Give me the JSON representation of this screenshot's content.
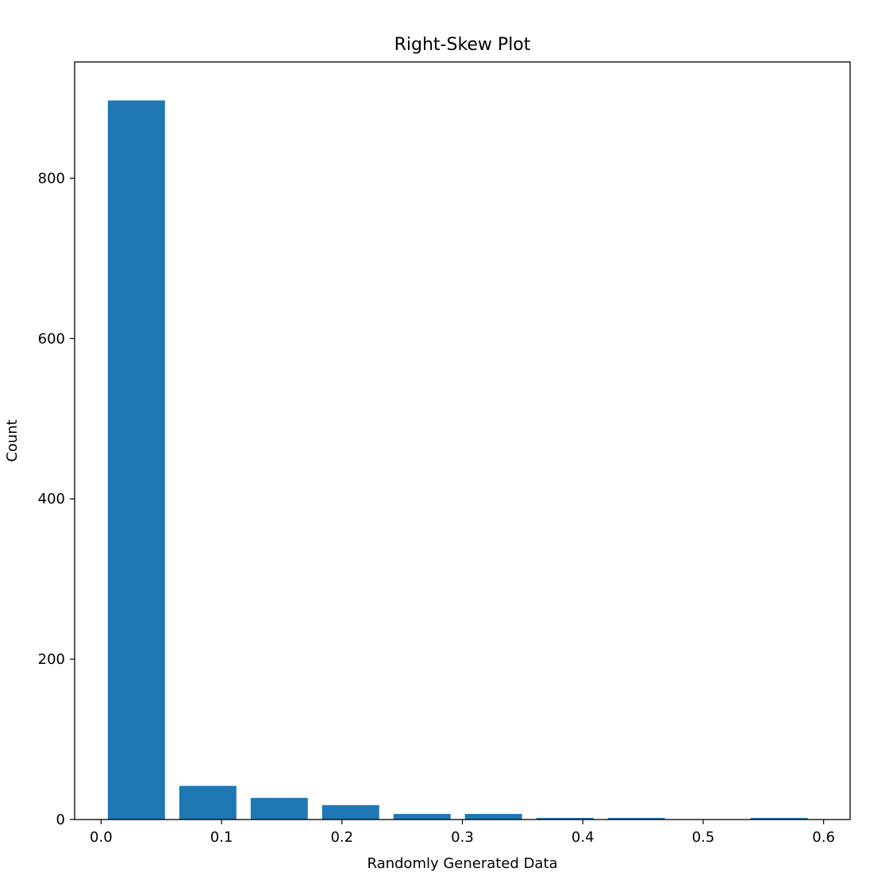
{
  "chart_data": {
    "type": "bar",
    "title": "Right-Skew Plot",
    "xlabel": "Randomly Generated Data",
    "ylabel": "Count",
    "xlim": [
      -0.022,
      0.622
    ],
    "ylim": [
      0,
      945
    ],
    "xticks": [
      0.0,
      0.1,
      0.2,
      0.3,
      0.4,
      0.5,
      0.6
    ],
    "xtick_labels": [
      "0.0",
      "0.1",
      "0.2",
      "0.3",
      "0.4",
      "0.5",
      "0.6"
    ],
    "yticks": [
      0,
      200,
      400,
      600,
      800
    ],
    "ytick_labels": [
      "0",
      "200",
      "400",
      "600",
      "800"
    ],
    "bar_color": "#1f77b4",
    "bin_width": 0.0593,
    "bar_width_fraction": 0.8,
    "bins": [
      {
        "x": 0.0056,
        "value": 897
      },
      {
        "x": 0.0649,
        "value": 42
      },
      {
        "x": 0.1242,
        "value": 27
      },
      {
        "x": 0.1835,
        "value": 18
      },
      {
        "x": 0.2428,
        "value": 7
      },
      {
        "x": 0.3021,
        "value": 7
      },
      {
        "x": 0.3614,
        "value": 2
      },
      {
        "x": 0.4207,
        "value": 2
      },
      {
        "x": 0.48,
        "value": 0
      },
      {
        "x": 0.5393,
        "value": 2
      }
    ],
    "grid": false,
    "legend": "none"
  }
}
